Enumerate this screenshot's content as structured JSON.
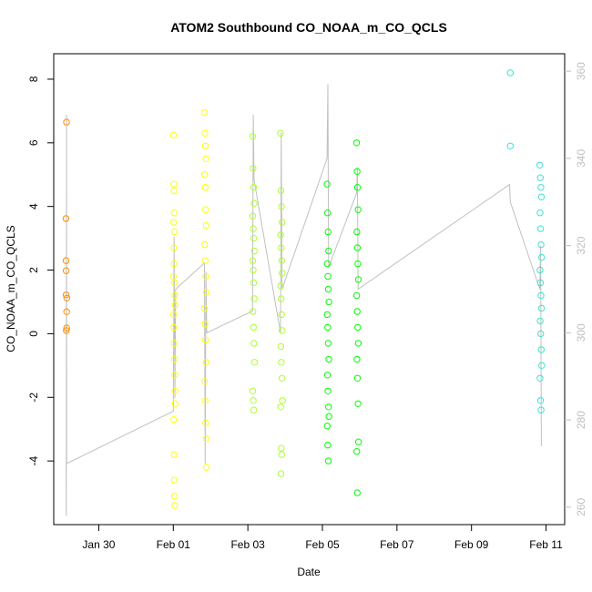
{
  "chart_data": {
    "type": "scatter",
    "title": "ATOM2 Southbound CO_NOAA_m_CO_QCLS",
    "xlabel": "Date",
    "ylabel": "CO_NOAA_m_CO_QCLS",
    "xlim": [
      "2017-01-28T19:00",
      "2017-02-11T12:00"
    ],
    "ylim": [
      -6.0,
      8.8
    ],
    "x_ticks": [
      "Jan 30",
      "Feb 01",
      "Feb 03",
      "Feb 05",
      "Feb 07",
      "Feb 09",
      "Feb 11"
    ],
    "y_ticks": [
      -4,
      -2,
      0,
      2,
      4,
      6,
      8
    ],
    "y2_ticks": [
      260,
      280,
      300,
      320,
      340,
      360
    ],
    "y2lim": [
      256.0,
      364.0
    ],
    "y2_role": "altitude/pressure trace (grey line)",
    "grid": false,
    "legend": "none",
    "point_colors": [
      "#ff8c00",
      "#ffff00",
      "#adff2f",
      "#00ff00",
      "#00ff7f",
      "#40e0d0"
    ],
    "trace_color": "#c0c0c0",
    "right_axis_color": "#c0c0c0",
    "series": [
      {
        "color": "#ff8c00",
        "points": [
          [
            "2017-01-29T03:12",
            6.65
          ],
          [
            "2017-01-29T02:50",
            3.62
          ],
          [
            "2017-01-29T02:55",
            2.3
          ],
          [
            "2017-01-29T02:58",
            1.98
          ],
          [
            "2017-01-29T03:00",
            1.22
          ],
          [
            "2017-01-29T03:25",
            1.12
          ],
          [
            "2017-01-29T03:20",
            0.69
          ],
          [
            "2017-01-29T03:18",
            0.18
          ],
          [
            "2017-01-29T03:05",
            0.1
          ]
        ]
      },
      {
        "color": "#ffff00",
        "points": [
          [
            "2017-02-01T00:10",
            6.25
          ],
          [
            "2017-02-01T00:20",
            4.7
          ],
          [
            "2017-02-01T00:30",
            4.5
          ],
          [
            "2017-02-01T00:40",
            3.8
          ],
          [
            "2017-02-01T00:15",
            3.5
          ],
          [
            "2017-02-01T00:50",
            3.2
          ],
          [
            "2017-02-01T00:25",
            2.7
          ],
          [
            "2017-02-01T00:35",
            2.2
          ],
          [
            "2017-02-01T00:05",
            1.8
          ],
          [
            "2017-02-01T00:45",
            1.6
          ],
          [
            "2017-02-01T00:55",
            1.2
          ],
          [
            "2017-02-01T01:05",
            0.9
          ],
          [
            "2017-02-01T00:12",
            0.6
          ],
          [
            "2017-02-01T00:22",
            0.2
          ],
          [
            "2017-02-01T00:32",
            -0.3
          ],
          [
            "2017-02-01T00:42",
            -0.8
          ],
          [
            "2017-02-01T00:52",
            -1.3
          ],
          [
            "2017-02-01T01:02",
            -1.8
          ],
          [
            "2017-02-01T01:12",
            -2.2
          ],
          [
            "2017-02-01T00:18",
            -2.7
          ],
          [
            "2017-02-01T00:28",
            -3.8
          ],
          [
            "2017-02-01T00:38",
            -4.6
          ],
          [
            "2017-02-01T00:48",
            -5.1
          ],
          [
            "2017-02-01T00:58",
            -5.4
          ],
          [
            "2017-02-01T20:00",
            6.95
          ],
          [
            "2017-02-01T20:20",
            6.3
          ],
          [
            "2017-02-01T20:40",
            5.9
          ],
          [
            "2017-02-01T21:00",
            5.5
          ],
          [
            "2017-02-01T20:10",
            5.0
          ],
          [
            "2017-02-01T20:30",
            4.6
          ],
          [
            "2017-02-01T20:50",
            3.9
          ],
          [
            "2017-02-01T21:10",
            3.4
          ],
          [
            "2017-02-01T20:15",
            2.8
          ],
          [
            "2017-02-01T20:35",
            2.3
          ],
          [
            "2017-02-01T20:55",
            1.8
          ],
          [
            "2017-02-01T21:15",
            1.3
          ],
          [
            "2017-02-01T20:05",
            0.8
          ],
          [
            "2017-02-01T20:25",
            0.3
          ],
          [
            "2017-02-01T20:45",
            -0.2
          ],
          [
            "2017-02-01T21:05",
            -0.9
          ],
          [
            "2017-02-01T20:12",
            -1.5
          ],
          [
            "2017-02-01T20:32",
            -2.1
          ],
          [
            "2017-02-01T20:52",
            -2.8
          ],
          [
            "2017-02-01T21:12",
            -3.3
          ],
          [
            "2017-02-01T21:20",
            -4.2
          ]
        ]
      },
      {
        "color": "#adff2f",
        "points": [
          [
            "2017-02-03T03:00",
            6.2
          ],
          [
            "2017-02-03T03:20",
            5.2
          ],
          [
            "2017-02-03T03:40",
            4.6
          ],
          [
            "2017-02-03T04:00",
            4.1
          ],
          [
            "2017-02-03T03:10",
            3.7
          ],
          [
            "2017-02-03T03:30",
            3.3
          ],
          [
            "2017-02-03T03:50",
            3.0
          ],
          [
            "2017-02-03T04:10",
            2.6
          ],
          [
            "2017-02-03T03:05",
            2.3
          ],
          [
            "2017-02-03T03:25",
            2.0
          ],
          [
            "2017-02-03T03:45",
            1.6
          ],
          [
            "2017-02-03T04:05",
            1.1
          ],
          [
            "2017-02-03T03:15",
            0.7
          ],
          [
            "2017-02-03T03:35",
            0.2
          ],
          [
            "2017-02-03T03:55",
            -0.3
          ],
          [
            "2017-02-03T04:15",
            -0.9
          ],
          [
            "2017-02-03T03:08",
            -1.8
          ],
          [
            "2017-02-03T03:28",
            -2.1
          ],
          [
            "2017-02-03T03:48",
            -2.4
          ],
          [
            "2017-02-03T21:00",
            6.3
          ],
          [
            "2017-02-03T21:20",
            4.5
          ],
          [
            "2017-02-03T21:40",
            4.0
          ],
          [
            "2017-02-03T22:00",
            3.5
          ],
          [
            "2017-02-03T21:10",
            3.1
          ],
          [
            "2017-02-03T21:30",
            2.7
          ],
          [
            "2017-02-03T21:50",
            2.3
          ],
          [
            "2017-02-03T22:10",
            1.9
          ],
          [
            "2017-02-03T21:05",
            1.5
          ],
          [
            "2017-02-03T21:25",
            1.1
          ],
          [
            "2017-02-03T21:45",
            0.6
          ],
          [
            "2017-02-03T22:05",
            0.1
          ],
          [
            "2017-02-03T21:15",
            -0.4
          ],
          [
            "2017-02-03T21:35",
            -0.9
          ],
          [
            "2017-02-03T21:55",
            -1.4
          ],
          [
            "2017-02-03T22:15",
            -2.1
          ],
          [
            "2017-02-03T21:08",
            -2.3
          ],
          [
            "2017-02-03T21:28",
            -3.6
          ],
          [
            "2017-02-03T21:48",
            -3.8
          ],
          [
            "2017-02-03T21:18",
            -4.4
          ]
        ]
      },
      {
        "color": "#00ff00",
        "points": [
          [
            "2017-02-05T03:00",
            4.7
          ],
          [
            "2017-02-05T03:20",
            3.8
          ],
          [
            "2017-02-05T03:40",
            3.2
          ],
          [
            "2017-02-05T04:00",
            2.6
          ],
          [
            "2017-02-05T03:10",
            2.2
          ],
          [
            "2017-02-05T03:30",
            1.8
          ],
          [
            "2017-02-05T03:50",
            1.4
          ],
          [
            "2017-02-05T04:10",
            1.0
          ],
          [
            "2017-02-05T03:05",
            0.6
          ],
          [
            "2017-02-05T03:25",
            0.2
          ],
          [
            "2017-02-05T03:45",
            -0.3
          ],
          [
            "2017-02-05T04:05",
            -0.8
          ],
          [
            "2017-02-05T03:15",
            -1.3
          ],
          [
            "2017-02-05T03:35",
            -1.8
          ],
          [
            "2017-02-05T03:55",
            -2.3
          ],
          [
            "2017-02-05T04:15",
            -2.6
          ],
          [
            "2017-02-05T03:08",
            -2.9
          ],
          [
            "2017-02-05T03:28",
            -3.5
          ],
          [
            "2017-02-05T03:48",
            -4.0
          ],
          [
            "2017-02-05T22:00",
            6.0
          ],
          [
            "2017-02-05T22:20",
            5.1
          ],
          [
            "2017-02-05T22:40",
            4.6
          ],
          [
            "2017-02-05T23:00",
            3.9
          ],
          [
            "2017-02-05T22:10",
            3.2
          ],
          [
            "2017-02-05T22:30",
            2.7
          ],
          [
            "2017-02-05T22:50",
            2.2
          ],
          [
            "2017-02-05T23:10",
            1.7
          ],
          [
            "2017-02-05T22:05",
            1.2
          ],
          [
            "2017-02-05T22:25",
            0.7
          ],
          [
            "2017-02-05T22:45",
            0.2
          ],
          [
            "2017-02-05T23:05",
            -0.3
          ],
          [
            "2017-02-05T22:15",
            -0.8
          ],
          [
            "2017-02-05T22:35",
            -1.4
          ],
          [
            "2017-02-05T22:55",
            -2.2
          ],
          [
            "2017-02-05T23:15",
            -3.4
          ],
          [
            "2017-02-05T22:08",
            -3.7
          ],
          [
            "2017-02-05T22:28",
            -5.0
          ]
        ]
      },
      {
        "color": "#40e0d0",
        "points": [
          [
            "2017-02-10T01:00",
            8.2
          ],
          [
            "2017-02-10T01:00",
            5.9
          ],
          [
            "2017-02-10T20:00",
            5.3
          ],
          [
            "2017-02-10T20:20",
            4.9
          ],
          [
            "2017-02-10T20:40",
            4.6
          ],
          [
            "2017-02-10T21:00",
            4.3
          ],
          [
            "2017-02-10T20:10",
            3.8
          ],
          [
            "2017-02-10T20:30",
            3.3
          ],
          [
            "2017-02-10T20:50",
            2.8
          ],
          [
            "2017-02-10T21:10",
            2.4
          ],
          [
            "2017-02-10T20:05",
            2.0
          ],
          [
            "2017-02-10T20:25",
            1.6
          ],
          [
            "2017-02-10T20:45",
            1.2
          ],
          [
            "2017-02-10T21:05",
            0.8
          ],
          [
            "2017-02-10T20:15",
            0.4
          ],
          [
            "2017-02-10T20:35",
            0.0
          ],
          [
            "2017-02-10T20:55",
            -0.5
          ],
          [
            "2017-02-10T21:15",
            -1.0
          ],
          [
            "2017-02-10T20:08",
            -1.4
          ],
          [
            "2017-02-10T20:28",
            -2.1
          ],
          [
            "2017-02-10T20:48",
            -2.4
          ]
        ]
      }
    ],
    "trace": [
      [
        "2017-01-29T03:00",
        270
      ],
      [
        "2017-01-29T03:05",
        258
      ],
      [
        "2017-01-29T03:10",
        300
      ],
      [
        "2017-01-29T03:15",
        350
      ],
      [
        "2017-01-29T03:20",
        270
      ],
      [
        "2017-02-01T00:00",
        282
      ],
      [
        "2017-02-01T00:30",
        322
      ],
      [
        "2017-02-01T01:00",
        285
      ],
      [
        "2017-02-01T01:30",
        310
      ],
      [
        "2017-02-01T20:00",
        316
      ],
      [
        "2017-02-01T20:30",
        270
      ],
      [
        "2017-02-01T21:00",
        314
      ],
      [
        "2017-02-01T21:30",
        300
      ],
      [
        "2017-02-03T03:00",
        305
      ],
      [
        "2017-02-03T03:30",
        350
      ],
      [
        "2017-02-03T04:00",
        335
      ],
      [
        "2017-02-03T21:00",
        300
      ],
      [
        "2017-02-03T21:30",
        346
      ],
      [
        "2017-02-03T22:00",
        310
      ],
      [
        "2017-02-05T03:00",
        340
      ],
      [
        "2017-02-05T03:30",
        357
      ],
      [
        "2017-02-05T04:00",
        315
      ],
      [
        "2017-02-05T22:00",
        332
      ],
      [
        "2017-02-05T22:30",
        338
      ],
      [
        "2017-02-05T23:00",
        310
      ],
      [
        "2017-02-10T00:30",
        334
      ],
      [
        "2017-02-10T01:00",
        330
      ],
      [
        "2017-02-10T20:00",
        310
      ],
      [
        "2017-02-10T20:30",
        320
      ],
      [
        "2017-02-10T21:00",
        274
      ]
    ]
  }
}
